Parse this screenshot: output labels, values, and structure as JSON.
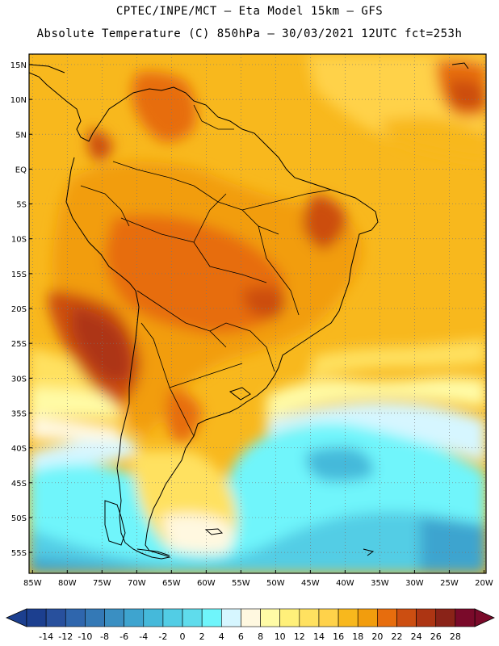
{
  "header": {
    "line1": "CPTEC/INPE/MCT —  Eta Model 15km — GFS",
    "line2": "Absolute Temperature (C) 850hPa — 30/03/2021 12UTC fct=253h"
  },
  "map": {
    "lat_labels": [
      "15N",
      "10N",
      "5N",
      "EQ",
      "5S",
      "10S",
      "15S",
      "20S",
      "25S",
      "30S",
      "35S",
      "40S",
      "45S",
      "50S",
      "55S"
    ],
    "lat_values": [
      15,
      10,
      5,
      0,
      -5,
      -10,
      -15,
      -20,
      -25,
      -30,
      -35,
      -40,
      -45,
      -50,
      -55
    ],
    "lon_labels": [
      "85W",
      "80W",
      "75W",
      "70W",
      "65W",
      "60W",
      "55W",
      "50W",
      "45W",
      "40W",
      "35W",
      "30W",
      "25W",
      "20W"
    ],
    "lon_values": [
      -85,
      -80,
      -75,
      -70,
      -65,
      -60,
      -55,
      -50,
      -45,
      -40,
      -35,
      -30,
      -25,
      -20
    ],
    "extent": {
      "lon_min": -85.5,
      "lon_max": -19.7,
      "lat_min": -58,
      "lat_max": 16.5
    },
    "gridlines": "dotted"
  },
  "colorbar": {
    "labels": [
      "-14",
      "-12",
      "-10",
      "-8",
      "-6",
      "-4",
      "-2",
      "0",
      "2",
      "4",
      "6",
      "8",
      "10",
      "12",
      "14",
      "16",
      "18",
      "20",
      "22",
      "24",
      "26",
      "28"
    ],
    "colors": [
      "#1c3f8f",
      "#28509d",
      "#2f66ad",
      "#3479b6",
      "#3a8fc2",
      "#3ea4cf",
      "#45b9da",
      "#52cde5",
      "#5fdcec",
      "#6ff5fb",
      "#d6f6ff",
      "#fff8e0",
      "#fffba6",
      "#fff07a",
      "#ffe160",
      "#ffd24a",
      "#f8b81d",
      "#f29d0d",
      "#e76d0d",
      "#cc4e11",
      "#ad3513",
      "#8a2318",
      "#7a0a2a"
    ],
    "extends": "both"
  }
}
